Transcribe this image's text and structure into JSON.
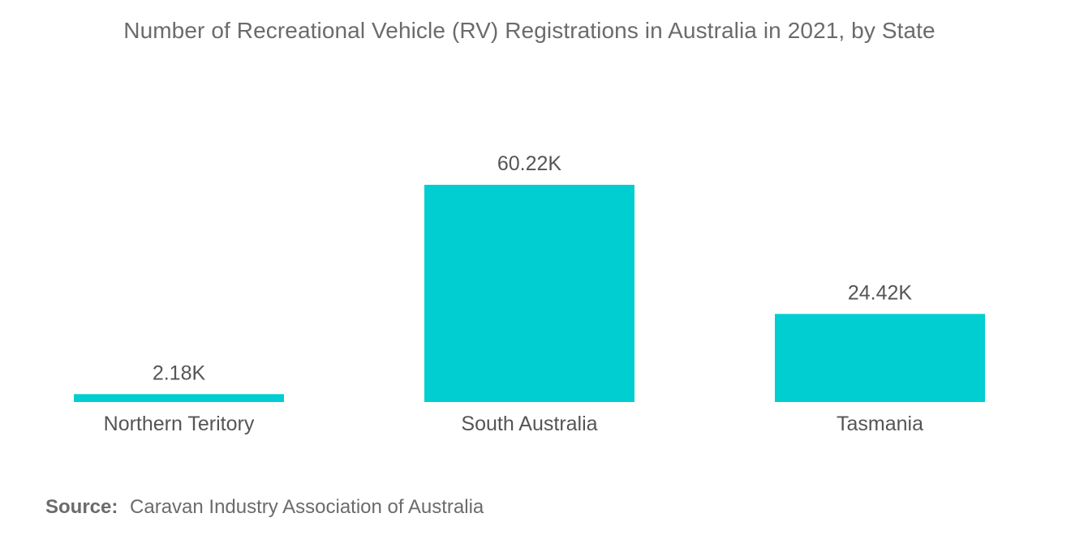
{
  "colors": {
    "bar": "#00CED1",
    "text": "#555555",
    "title": "#6b6b6b"
  },
  "chart_data": {
    "type": "bar",
    "title": "Number of Recreational Vehicle (RV) Registrations in Australia in 2021, by State",
    "xlabel": "",
    "ylabel": "",
    "categories": [
      "Northern Teritory",
      "South Australia",
      "Tasmania"
    ],
    "values": [
      2.18,
      60.22,
      24.42
    ],
    "value_labels": [
      "2.18K",
      "60.22K",
      "24.42K"
    ],
    "unit": "K",
    "ylim": [
      0,
      60.22
    ],
    "grid": false,
    "legend": "none"
  },
  "source": {
    "label": "Source:",
    "text": "Caravan Industry Association of Australia"
  }
}
